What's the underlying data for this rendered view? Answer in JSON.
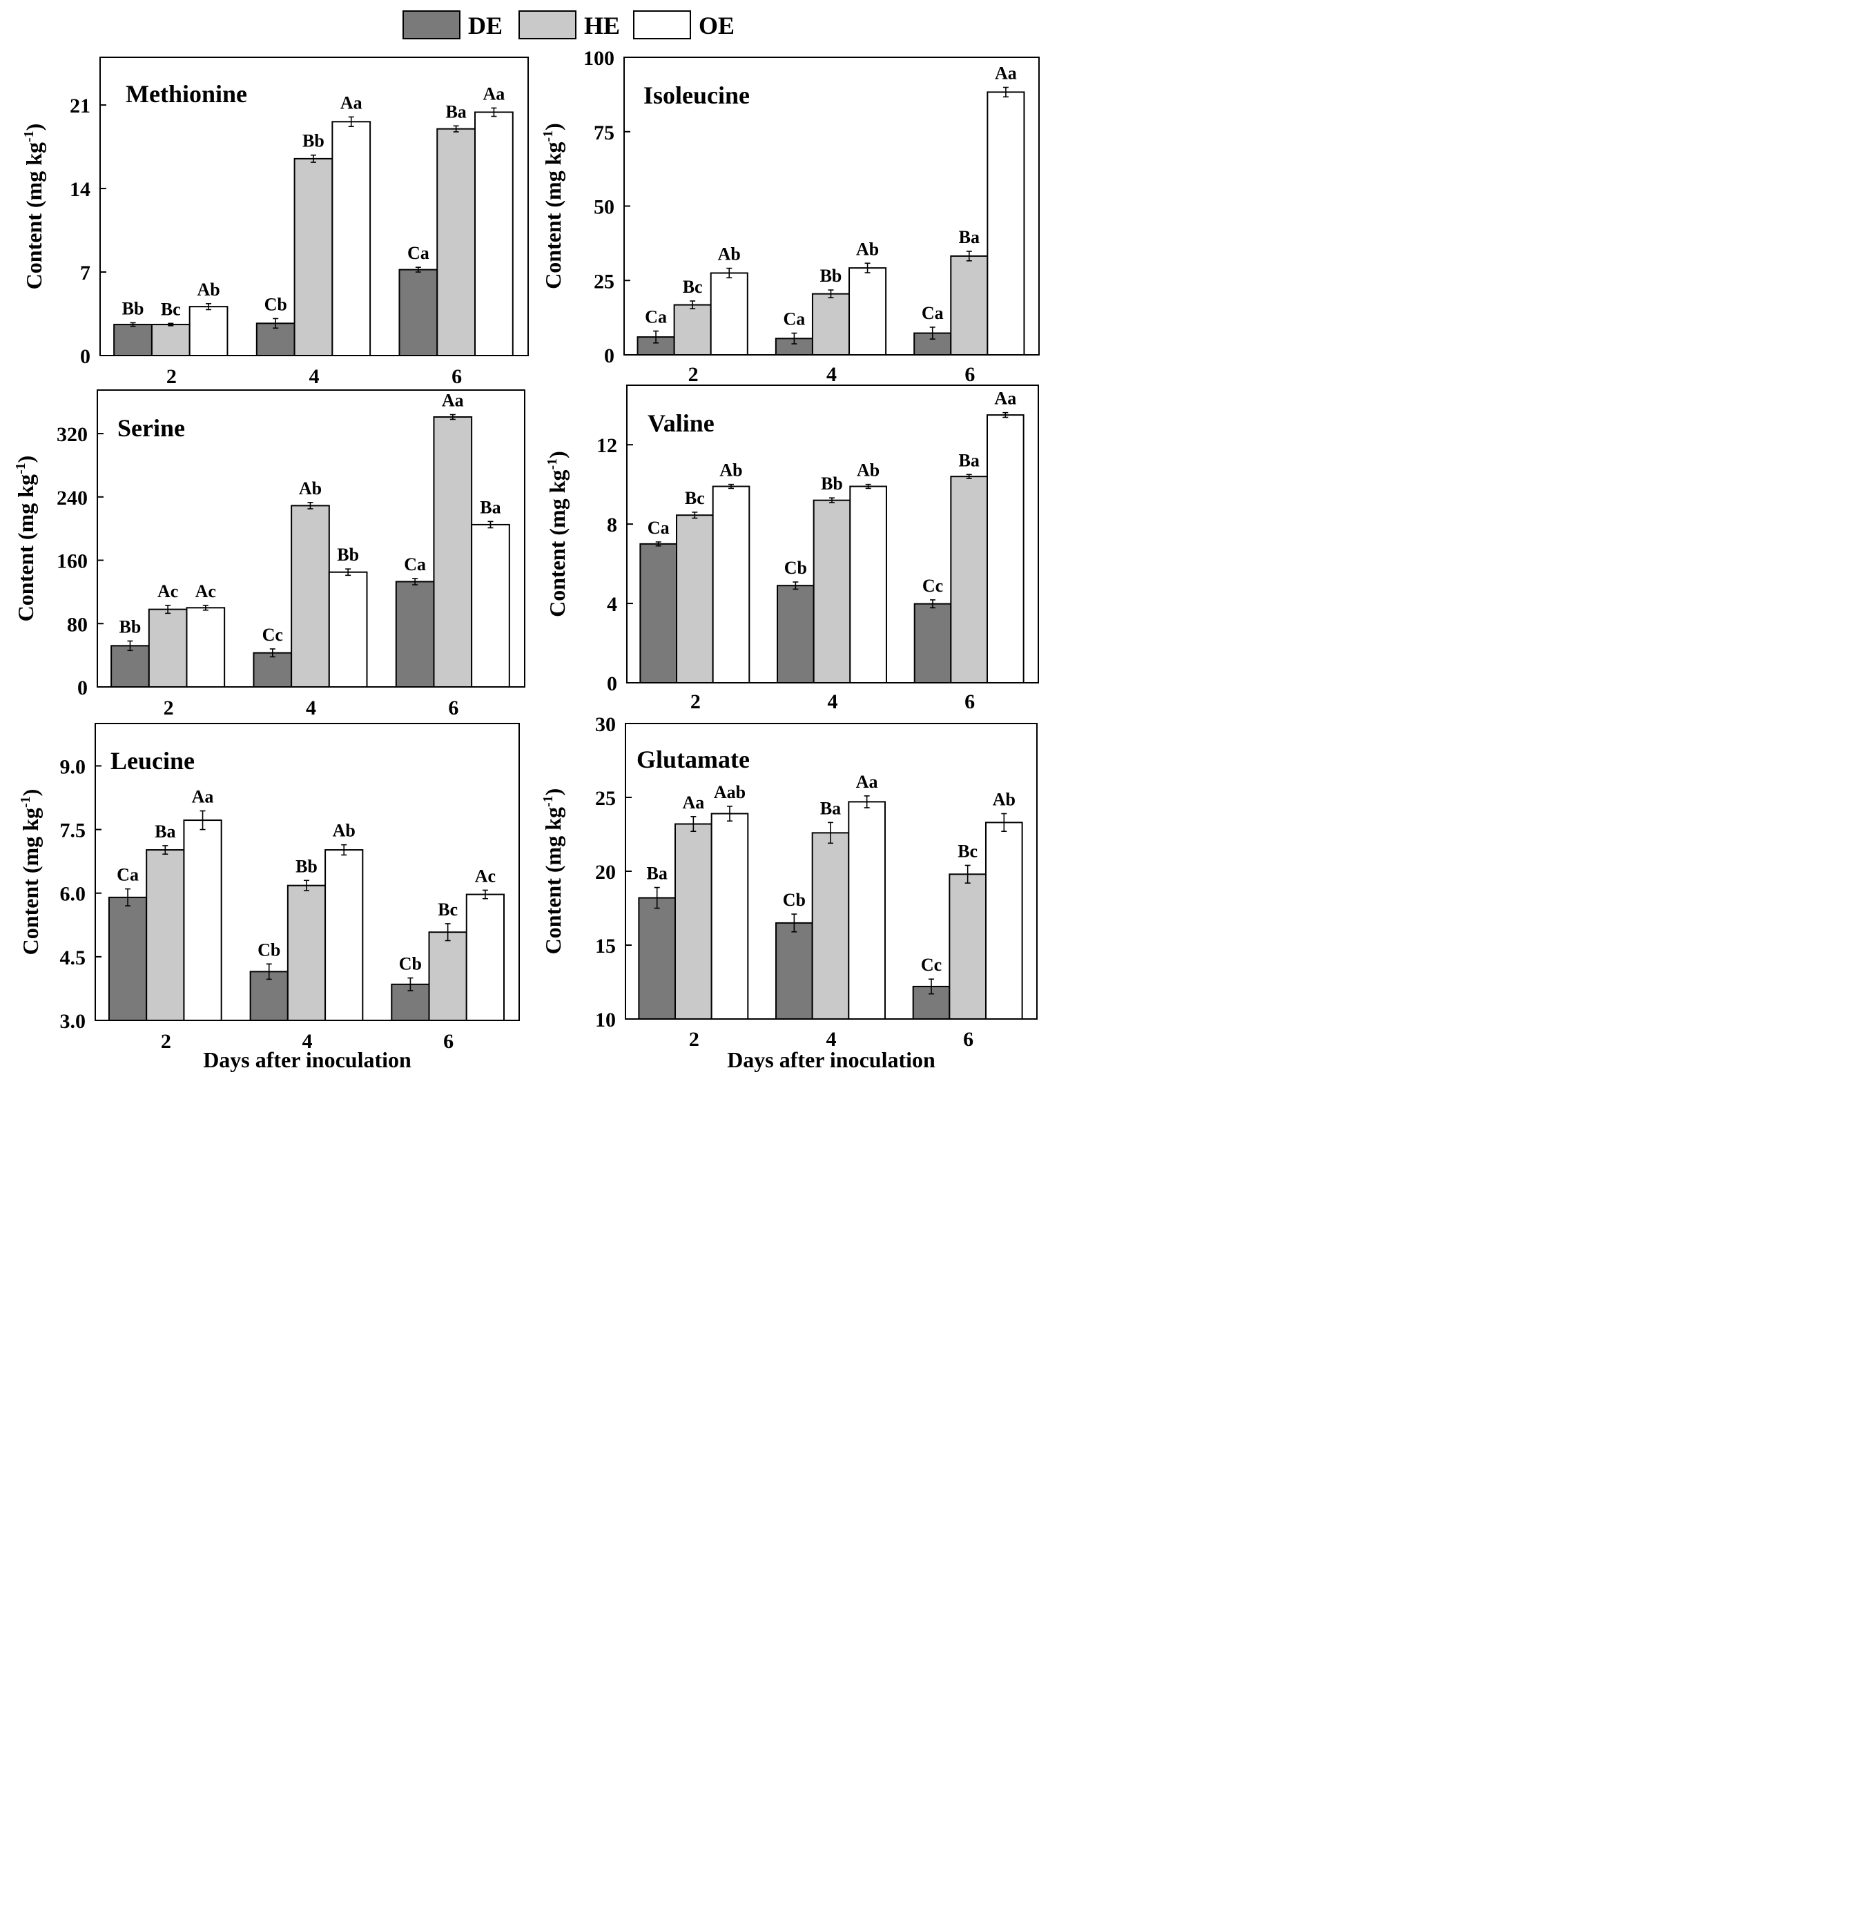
{
  "legend": [
    {
      "name": "DE",
      "color": "#7a7a7a"
    },
    {
      "name": "HE",
      "color": "#c9c9c9"
    },
    {
      "name": "OE",
      "color": "#ffffff"
    }
  ],
  "chart_data": [
    {
      "type": "bar",
      "title": "Methionine",
      "ylabel": "Content (mg kg-1)",
      "xlabel": "",
      "categories": [
        "2",
        "4",
        "6"
      ],
      "ylim": [
        0,
        25
      ],
      "yticks": [
        "0",
        "7",
        "14",
        "21"
      ],
      "series": [
        {
          "name": "DE",
          "values": [
            2.6,
            2.7,
            7.2
          ],
          "errors": [
            0.15,
            0.4,
            0.2
          ],
          "letters": [
            "Bb",
            "Cb",
            "Ca"
          ]
        },
        {
          "name": "HE",
          "values": [
            2.6,
            16.5,
            19.0
          ],
          "errors": [
            0.1,
            0.3,
            0.25
          ],
          "letters": [
            "Bc",
            "Bb",
            "Ba"
          ]
        },
        {
          "name": "OE",
          "values": [
            4.1,
            19.6,
            20.4
          ],
          "errors": [
            0.25,
            0.4,
            0.35
          ],
          "letters": [
            "Ab",
            "Aa",
            "Aa"
          ]
        }
      ]
    },
    {
      "type": "bar",
      "title": "Isoleucine",
      "ylabel": "Content (mg kg-1)",
      "xlabel": "",
      "categories": [
        "2",
        "4",
        "6"
      ],
      "ylim": [
        0,
        100
      ],
      "yticks": [
        "0",
        "25",
        "50",
        "75",
        "100"
      ],
      "series": [
        {
          "name": "DE",
          "values": [
            6.0,
            5.5,
            7.3
          ],
          "errors": [
            2.0,
            1.8,
            2.0
          ],
          "letters": [
            "Ca",
            "Ca",
            "Ca"
          ]
        },
        {
          "name": "HE",
          "values": [
            16.8,
            20.5,
            33.2
          ],
          "errors": [
            1.3,
            1.3,
            1.6
          ],
          "letters": [
            "Bc",
            "Bb",
            "Ba"
          ]
        },
        {
          "name": "OE",
          "values": [
            27.5,
            29.2,
            88.3
          ],
          "errors": [
            1.6,
            1.6,
            1.6
          ],
          "letters": [
            "Ab",
            "Ab",
            "Aa"
          ]
        }
      ]
    },
    {
      "type": "bar",
      "title": "Serine",
      "ylabel": "Content (mg kg-1)",
      "xlabel": "",
      "categories": [
        "2",
        "4",
        "6"
      ],
      "ylim": [
        0,
        375
      ],
      "yticks": [
        "0",
        "80",
        "160",
        "240",
        "320"
      ],
      "series": [
        {
          "name": "DE",
          "values": [
            52,
            43,
            133
          ],
          "errors": [
            6,
            5,
            4
          ],
          "letters": [
            "Bb",
            "Cc",
            "Ca"
          ]
        },
        {
          "name": "HE",
          "values": [
            98,
            229,
            341
          ],
          "errors": [
            5,
            4,
            3
          ],
          "letters": [
            "Ac",
            "Ab",
            "Aa"
          ]
        },
        {
          "name": "OE",
          "values": [
            100,
            145,
            205
          ],
          "errors": [
            3,
            4,
            4
          ],
          "letters": [
            "Ac",
            "Bb",
            "Ba"
          ]
        }
      ]
    },
    {
      "type": "bar",
      "title": "Valine",
      "ylabel": "Content (mg kg-1)",
      "xlabel": "",
      "categories": [
        "2",
        "4",
        "6"
      ],
      "ylim": [
        0,
        15
      ],
      "yticks": [
        "0",
        "4",
        "8",
        "12"
      ],
      "series": [
        {
          "name": "DE",
          "values": [
            7.0,
            4.9,
            3.98
          ],
          "errors": [
            0.1,
            0.18,
            0.2
          ],
          "letters": [
            "Ca",
            "Cb",
            "Cc"
          ]
        },
        {
          "name": "HE",
          "values": [
            8.45,
            9.2,
            10.4
          ],
          "errors": [
            0.15,
            0.12,
            0.1
          ],
          "letters": [
            "Bc",
            "Bb",
            "Ba"
          ]
        },
        {
          "name": "OE",
          "values": [
            9.9,
            9.9,
            13.5
          ],
          "errors": [
            0.1,
            0.1,
            0.12
          ],
          "letters": [
            "Ab",
            "Ab",
            "Aa"
          ]
        }
      ]
    },
    {
      "type": "bar",
      "title": "Leucine",
      "ylabel": "Content (mg kg-1)",
      "xlabel": "Days after inoculation",
      "categories": [
        "2",
        "4",
        "6"
      ],
      "ylim": [
        3.0,
        10.0
      ],
      "yticks": [
        "3.0",
        "4.5",
        "6.0",
        "7.5",
        "9.0"
      ],
      "series": [
        {
          "name": "DE",
          "values": [
            5.9,
            4.15,
            3.85
          ],
          "errors": [
            0.2,
            0.18,
            0.15
          ],
          "letters": [
            "Ca",
            "Cb",
            "Cb"
          ]
        },
        {
          "name": "HE",
          "values": [
            7.02,
            6.18,
            5.08
          ],
          "errors": [
            0.1,
            0.12,
            0.2
          ],
          "letters": [
            "Ba",
            "Bb",
            "Bc"
          ]
        },
        {
          "name": "OE",
          "values": [
            7.72,
            7.02,
            5.97
          ],
          "errors": [
            0.22,
            0.12,
            0.1
          ],
          "letters": [
            "Aa",
            "Ab",
            "Ac"
          ]
        }
      ]
    },
    {
      "type": "bar",
      "title": "Glutamate",
      "ylabel": "Content (mg kg-1)",
      "xlabel": "Days after inoculation",
      "categories": [
        "2",
        "4",
        "6"
      ],
      "ylim": [
        10,
        30
      ],
      "yticks": [
        "10",
        "15",
        "20",
        "25",
        "30"
      ],
      "series": [
        {
          "name": "DE",
          "values": [
            18.2,
            16.5,
            12.2
          ],
          "errors": [
            0.7,
            0.6,
            0.5
          ],
          "letters": [
            "Ba",
            "Cb",
            "Cc"
          ]
        },
        {
          "name": "HE",
          "values": [
            23.2,
            22.6,
            19.8
          ],
          "errors": [
            0.5,
            0.7,
            0.6
          ],
          "letters": [
            "Aa",
            "Ba",
            "Bc"
          ]
        },
        {
          "name": "OE",
          "values": [
            23.9,
            24.7,
            23.3
          ],
          "errors": [
            0.5,
            0.4,
            0.6
          ],
          "letters": [
            "Aab",
            "Aa",
            "Ab"
          ]
        }
      ]
    }
  ]
}
